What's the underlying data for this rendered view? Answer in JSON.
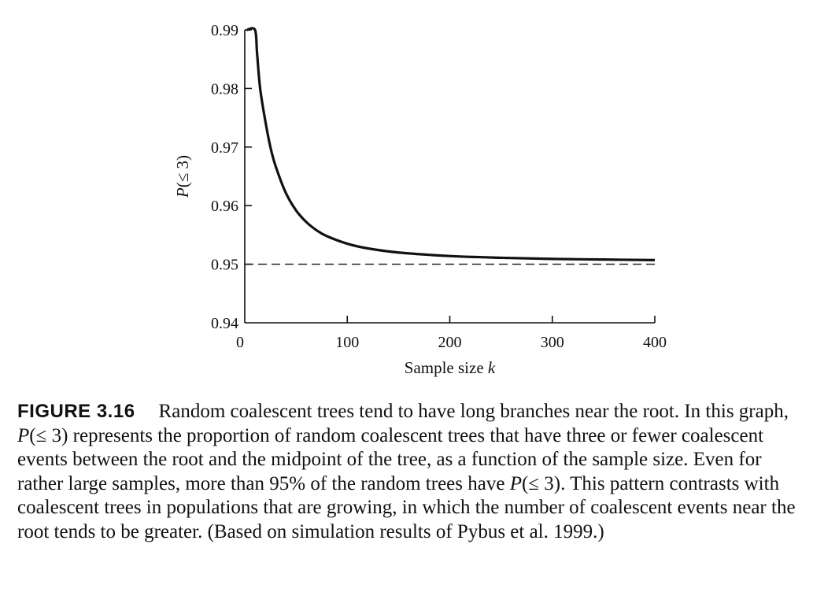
{
  "chart_data": {
    "type": "line",
    "xlabel_text": "Sample size ",
    "xlabel_var": "k",
    "ylabel_var": "P",
    "ylabel_rest": "(≤ 3)",
    "xlim": [
      0,
      400
    ],
    "ylim": [
      0.94,
      0.99
    ],
    "xticks": [
      0,
      100,
      200,
      300,
      400
    ],
    "xtick_labels": [
      "0",
      "100",
      "200",
      "300",
      "400"
    ],
    "yticks": [
      0.94,
      0.95,
      0.96,
      0.97,
      0.98,
      0.99
    ],
    "ytick_labels": [
      "0.94",
      "0.95",
      "0.96",
      "0.97",
      "0.98",
      "0.99"
    ],
    "series": [
      {
        "style": "solid",
        "x": [
          2,
          10,
          12,
          15,
          20,
          25,
          30,
          40,
          50,
          60,
          70,
          80,
          100,
          120,
          150,
          200,
          250,
          300,
          350,
          400
        ],
        "y": [
          0.99,
          0.99,
          0.986,
          0.98,
          0.9745,
          0.97,
          0.9668,
          0.9622,
          0.9592,
          0.9572,
          0.9558,
          0.9548,
          0.9535,
          0.9527,
          0.952,
          0.9514,
          0.9511,
          0.9509,
          0.9508,
          0.9507
        ]
      },
      {
        "style": "dashed",
        "x": [
          0,
          400
        ],
        "y": [
          0.95,
          0.95
        ]
      }
    ]
  },
  "caption": {
    "label": "FIGURE 3.16",
    "segments": [
      {
        "text": "Random coalescent trees tend to have long branches near the root. In this graph, ",
        "italic": false
      },
      {
        "text": "P",
        "italic": true
      },
      {
        "text": "(≤ 3) represents the proportion of random coalescent trees that have three or fewer coalescent events between the root and the midpoint of the tree, as a function of the sample size. Even for rather large samples, more than 95% of the random trees have ",
        "italic": false
      },
      {
        "text": "P",
        "italic": true
      },
      {
        "text": "(≤ 3). This pattern contrasts with coalescent trees in populations that are growing, in which the number of coalescent events near the root tends to be greater. (Based on simulation results of Pybus et al. 1999.)",
        "italic": false
      }
    ]
  }
}
